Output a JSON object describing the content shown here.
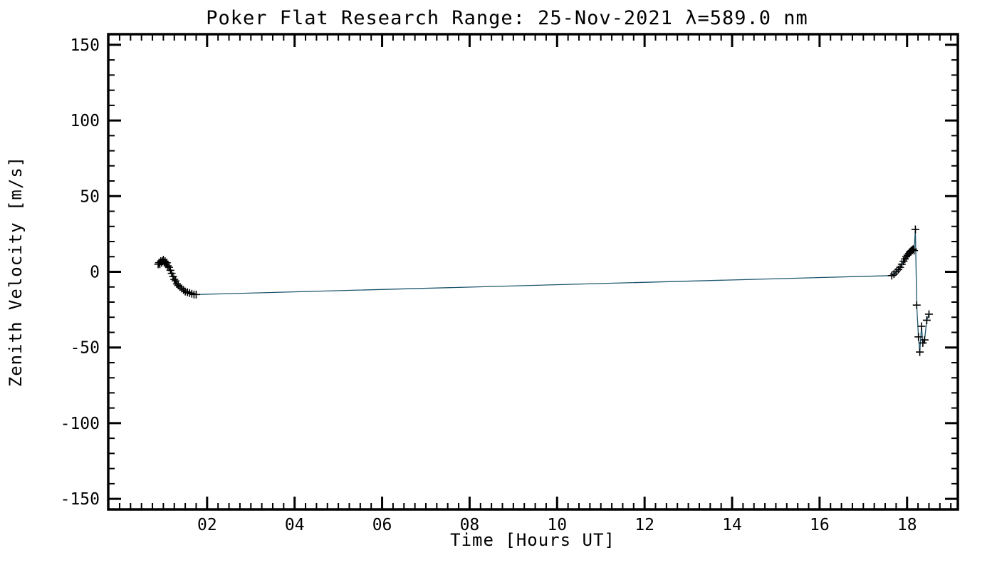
{
  "page": {
    "background": "#ffffff"
  },
  "chart_data": {
    "type": "line",
    "title": "Poker Flat Research Range: 25-Nov-2021 λ=589.0 nm",
    "xlabel": "Time [Hours UT]",
    "ylabel": "Zenith Velocity [m/s]",
    "xlim": [
      -0.26,
      19.16
    ],
    "ylim": [
      -157,
      157
    ],
    "x_major_ticks": [
      2,
      4,
      6,
      8,
      10,
      12,
      14,
      16,
      18
    ],
    "x_tick_labels": [
      "02",
      "04",
      "06",
      "08",
      "10",
      "12",
      "14",
      "16",
      "18"
    ],
    "x_minor_step": 0.25,
    "y_major_ticks": [
      -150,
      -100,
      -50,
      0,
      50,
      100,
      150
    ],
    "y_tick_labels": [
      "-150",
      "-100",
      "-50",
      "0",
      "50",
      "100",
      "150"
    ],
    "y_minor_step": 10,
    "grid": false,
    "legend": null,
    "frame_color": "#000000",
    "line_color": "#1d566e",
    "marker": "+",
    "marker_color": "#000000",
    "series": [
      {
        "name": "zenith-velocity",
        "points": [
          [
            0.88,
            5
          ],
          [
            0.9,
            6
          ],
          [
            0.92,
            5
          ],
          [
            0.94,
            7
          ],
          [
            0.96,
            6
          ],
          [
            0.98,
            7
          ],
          [
            1.0,
            8
          ],
          [
            1.02,
            6
          ],
          [
            1.04,
            7
          ],
          [
            1.06,
            5
          ],
          [
            1.08,
            6
          ],
          [
            1.1,
            4
          ],
          [
            1.13,
            3
          ],
          [
            1.16,
            1
          ],
          [
            1.19,
            -1
          ],
          [
            1.22,
            -3
          ],
          [
            1.25,
            -5
          ],
          [
            1.28,
            -6
          ],
          [
            1.31,
            -8
          ],
          [
            1.34,
            -9
          ],
          [
            1.38,
            -10
          ],
          [
            1.42,
            -11
          ],
          [
            1.46,
            -12
          ],
          [
            1.5,
            -13
          ],
          [
            1.55,
            -13.5
          ],
          [
            1.6,
            -14
          ],
          [
            1.65,
            -14.5
          ],
          [
            1.7,
            -15
          ],
          [
            1.75,
            -15
          ],
          [
            17.65,
            -2.5
          ],
          [
            17.7,
            -1.5
          ],
          [
            17.75,
            0
          ],
          [
            17.8,
            1.5
          ],
          [
            17.84,
            3
          ],
          [
            17.88,
            5
          ],
          [
            17.92,
            7
          ],
          [
            17.95,
            8.5
          ],
          [
            17.98,
            10
          ],
          [
            18.01,
            11
          ],
          [
            18.04,
            12
          ],
          [
            18.06,
            13
          ],
          [
            18.08,
            13.5
          ],
          [
            18.1,
            14
          ],
          [
            18.12,
            14.5
          ],
          [
            18.14,
            15
          ],
          [
            18.16,
            14
          ],
          [
            18.19,
            28
          ],
          [
            18.22,
            -22
          ],
          [
            18.26,
            -43
          ],
          [
            18.29,
            -53
          ],
          [
            18.33,
            -36
          ],
          [
            18.36,
            -47
          ],
          [
            18.4,
            -45
          ],
          [
            18.45,
            -32
          ],
          [
            18.5,
            -28
          ]
        ]
      }
    ]
  }
}
